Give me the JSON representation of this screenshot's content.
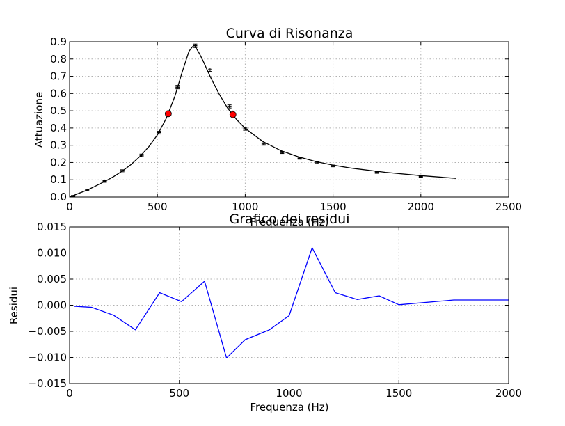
{
  "chart_data": [
    {
      "type": "scatter",
      "title": "Curva di Risonanza",
      "xlabel": "Frequenza (Hz)",
      "ylabel": "Attuazione",
      "xlim": [
        0,
        2500
      ],
      "ylim": [
        0,
        0.9
      ],
      "grid": true,
      "xticks": [
        "0",
        "500",
        "1000",
        "1500",
        "2000",
        "2500"
      ],
      "yticks": [
        "0.0",
        "0.1",
        "0.2",
        "0.3",
        "0.4",
        "0.5",
        "0.6",
        "0.7",
        "0.8",
        "0.9"
      ],
      "series": [
        {
          "kind": "errorbar-points",
          "color": "#000000",
          "x": [
            20,
            100,
            200,
            300,
            410,
            510,
            615,
            715,
            800,
            910,
            1000,
            1105,
            1210,
            1310,
            1410,
            1500,
            1750,
            2000
          ],
          "y": [
            0.005,
            0.04,
            0.09,
            0.152,
            0.242,
            0.373,
            0.637,
            0.877,
            0.738,
            0.525,
            0.395,
            0.307,
            0.258,
            0.225,
            0.198,
            0.18,
            0.142,
            0.12
          ],
          "yerr": [
            0.004,
            0.005,
            0.005,
            0.006,
            0.007,
            0.008,
            0.01,
            0.01,
            0.01,
            0.009,
            0.008,
            0.007,
            0.006,
            0.006,
            0.006,
            0.005,
            0.005,
            0.005
          ]
        },
        {
          "kind": "fit-line",
          "color": "#000000",
          "x": [
            0,
            50,
            100,
            150,
            200,
            250,
            300,
            350,
            400,
            450,
            500,
            550,
            600,
            640,
            680,
            700,
            720,
            740,
            760,
            800,
            850,
            900,
            950,
            1000,
            1100,
            1200,
            1300,
            1400,
            1500,
            1600,
            1800,
            2000,
            2200
          ],
          "y": [
            0.0,
            0.02,
            0.04,
            0.065,
            0.09,
            0.118,
            0.15,
            0.188,
            0.235,
            0.29,
            0.36,
            0.455,
            0.585,
            0.72,
            0.845,
            0.872,
            0.865,
            0.83,
            0.79,
            0.7,
            0.6,
            0.515,
            0.45,
            0.398,
            0.322,
            0.27,
            0.234,
            0.206,
            0.185,
            0.168,
            0.143,
            0.124,
            0.108
          ]
        },
        {
          "kind": "markers",
          "color": "#ff0000",
          "x": [
            562,
            930
          ],
          "y": [
            0.483,
            0.478
          ]
        }
      ]
    },
    {
      "type": "line",
      "title": "Grafico dei residui",
      "xlabel": "Frequenza (Hz)",
      "ylabel": "Residui",
      "xlim": [
        0,
        2000
      ],
      "ylim": [
        -0.015,
        0.015
      ],
      "grid": true,
      "xticks": [
        "0",
        "500",
        "1000",
        "1500",
        "2000"
      ],
      "yticks": [
        "0.015",
        "0.010",
        "0.005",
        "0.000",
        "−0.005",
        "−0.010",
        "−0.015"
      ],
      "series": [
        {
          "color": "#0000ff",
          "x": [
            20,
            100,
            200,
            300,
            410,
            510,
            615,
            715,
            800,
            910,
            1000,
            1105,
            1210,
            1310,
            1410,
            1500,
            1750,
            2000
          ],
          "y": [
            -0.0002,
            -0.0004,
            -0.0019,
            -0.0047,
            0.0024,
            0.0007,
            0.0046,
            -0.0101,
            -0.0066,
            -0.0047,
            -0.002,
            0.011,
            0.0024,
            0.0011,
            0.0018,
            0.0001,
            0.001,
            0.001
          ]
        }
      ]
    }
  ]
}
